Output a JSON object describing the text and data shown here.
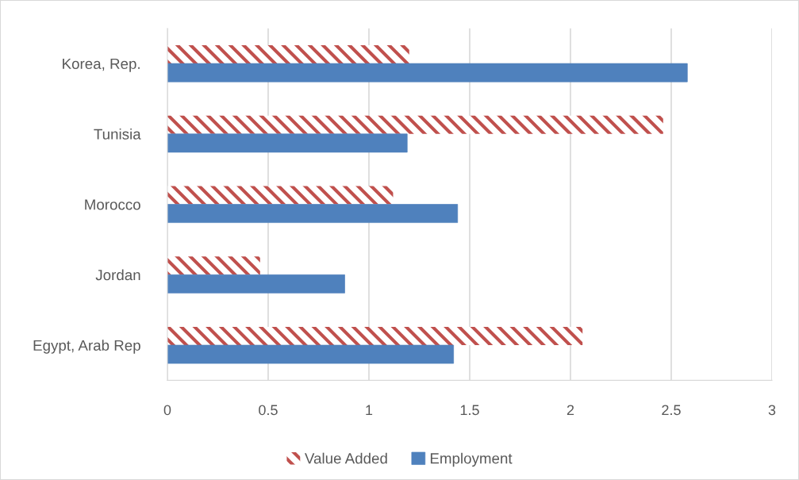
{
  "chart_data": {
    "type": "bar",
    "orientation": "horizontal",
    "categories": [
      "Korea, Rep.",
      "Tunisia",
      "Morocco",
      "Jordan",
      "Egypt, Arab Rep"
    ],
    "series": [
      {
        "name": "Value Added",
        "color": "#c0504d",
        "values": [
          1.2,
          2.46,
          1.12,
          0.46,
          2.06
        ]
      },
      {
        "name": "Employment",
        "color": "#4f81bd",
        "values": [
          2.58,
          1.19,
          1.44,
          0.88,
          1.42
        ]
      }
    ],
    "xlim": [
      0,
      3
    ],
    "xticks": [
      0,
      0.5,
      1,
      1.5,
      2,
      2.5,
      3
    ],
    "grid": "x",
    "legend": "bottom"
  }
}
